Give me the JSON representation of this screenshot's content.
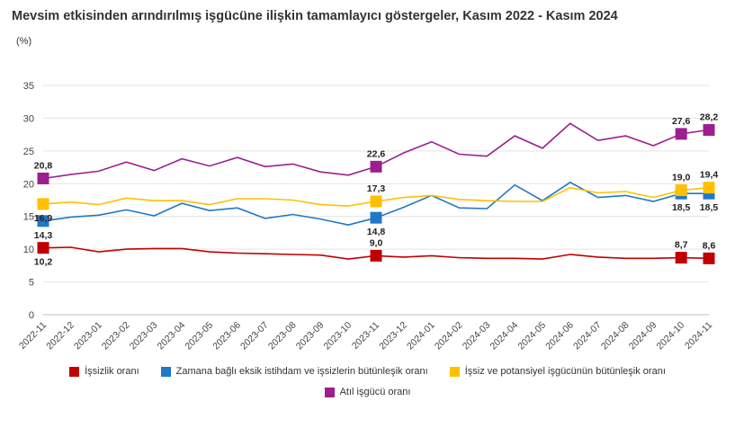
{
  "title": "Mevsim etkisinden arındırılmış işgücüne ilişkin tamamlayıcı göstergeler, Kasım 2022 - Kasım 2024",
  "unit": "(%)",
  "chart_data": {
    "type": "line",
    "title": "Mevsim etkisinden arındırılmış işgücüne ilişkin tamamlayıcı göstergeler, Kasım 2022 - Kasım 2024",
    "ylabel": "(%)",
    "ylim": [
      0,
      35
    ],
    "yticks": [
      0,
      5,
      10,
      15,
      20,
      25,
      30,
      35
    ],
    "grid": true,
    "legend_position": "bottom",
    "categories": [
      "2022-11",
      "2022-12",
      "2023-01",
      "2023-02",
      "2023-03",
      "2023-04",
      "2023-05",
      "2023-06",
      "2023-07",
      "2023-08",
      "2023-09",
      "2023-10",
      "2023-11",
      "2023-12",
      "2024-01",
      "2024-02",
      "2024-03",
      "2024-04",
      "2024-05",
      "2024-06",
      "2024-07",
      "2024-08",
      "2024-09",
      "2024-10",
      "2024-11"
    ],
    "series": [
      {
        "name": "İşsizlik oranı",
        "color": "#c00000",
        "values": [
          10.2,
          10.3,
          9.6,
          10.0,
          10.1,
          10.1,
          9.6,
          9.4,
          9.3,
          9.2,
          9.1,
          8.5,
          9.0,
          8.8,
          9.0,
          8.7,
          8.6,
          8.6,
          8.5,
          9.2,
          8.8,
          8.6,
          8.6,
          8.7,
          8.6
        ],
        "markers": [
          0,
          12,
          23,
          24
        ],
        "labels": [
          {
            "i": 0,
            "text": "10,2",
            "pos": "below"
          },
          {
            "i": 12,
            "text": "9,0",
            "pos": "above"
          },
          {
            "i": 23,
            "text": "8,7",
            "pos": "above"
          },
          {
            "i": 24,
            "text": "8,6",
            "pos": "above"
          }
        ]
      },
      {
        "name": "Zamana bağlı eksik istihdam ve işsizlerin bütünleşik oranı",
        "color": "#1f78c8",
        "values": [
          14.3,
          14.9,
          15.2,
          16.0,
          15.1,
          17.0,
          15.9,
          16.3,
          14.7,
          15.3,
          14.6,
          13.7,
          14.8,
          16.4,
          18.2,
          16.3,
          16.2,
          19.8,
          17.4,
          20.2,
          17.9,
          18.2,
          17.3,
          18.5,
          18.5
        ],
        "markers": [
          0,
          12,
          23,
          24
        ],
        "labels": [
          {
            "i": 0,
            "text": "14,3",
            "pos": "below"
          },
          {
            "i": 12,
            "text": "14,8",
            "pos": "below"
          },
          {
            "i": 23,
            "text": "18,5",
            "pos": "below"
          },
          {
            "i": 24,
            "text": "18,5",
            "pos": "below"
          }
        ]
      },
      {
        "name": "İşsiz ve potansiyel işgücünün bütünleşik oranı",
        "color": "#ffc000",
        "values": [
          16.9,
          17.2,
          16.8,
          17.8,
          17.4,
          17.4,
          16.8,
          17.7,
          17.7,
          17.5,
          16.8,
          16.6,
          17.3,
          17.9,
          18.2,
          17.6,
          17.4,
          17.3,
          17.3,
          19.4,
          18.6,
          18.8,
          17.9,
          19.0,
          19.4
        ],
        "markers": [
          0,
          12,
          23,
          24
        ],
        "labels": [
          {
            "i": 0,
            "text": "16,9",
            "pos": "below"
          },
          {
            "i": 12,
            "text": "17,3",
            "pos": "above"
          },
          {
            "i": 23,
            "text": "19,0",
            "pos": "above"
          },
          {
            "i": 24,
            "text": "19,4",
            "pos": "above"
          }
        ]
      },
      {
        "name": "Atıl işgücü oranı",
        "color": "#9b1f8e",
        "values": [
          20.8,
          21.4,
          21.9,
          23.3,
          22.0,
          23.8,
          22.7,
          24.0,
          22.6,
          23.0,
          21.8,
          21.3,
          22.6,
          24.7,
          26.4,
          24.5,
          24.2,
          27.3,
          25.4,
          29.2,
          26.6,
          27.3,
          25.8,
          27.6,
          28.2
        ],
        "markers": [
          0,
          12,
          23,
          24
        ],
        "labels": [
          {
            "i": 0,
            "text": "20,8",
            "pos": "above"
          },
          {
            "i": 12,
            "text": "22,6",
            "pos": "above"
          },
          {
            "i": 23,
            "text": "27,6",
            "pos": "above"
          },
          {
            "i": 24,
            "text": "28,2",
            "pos": "above"
          }
        ]
      }
    ]
  }
}
